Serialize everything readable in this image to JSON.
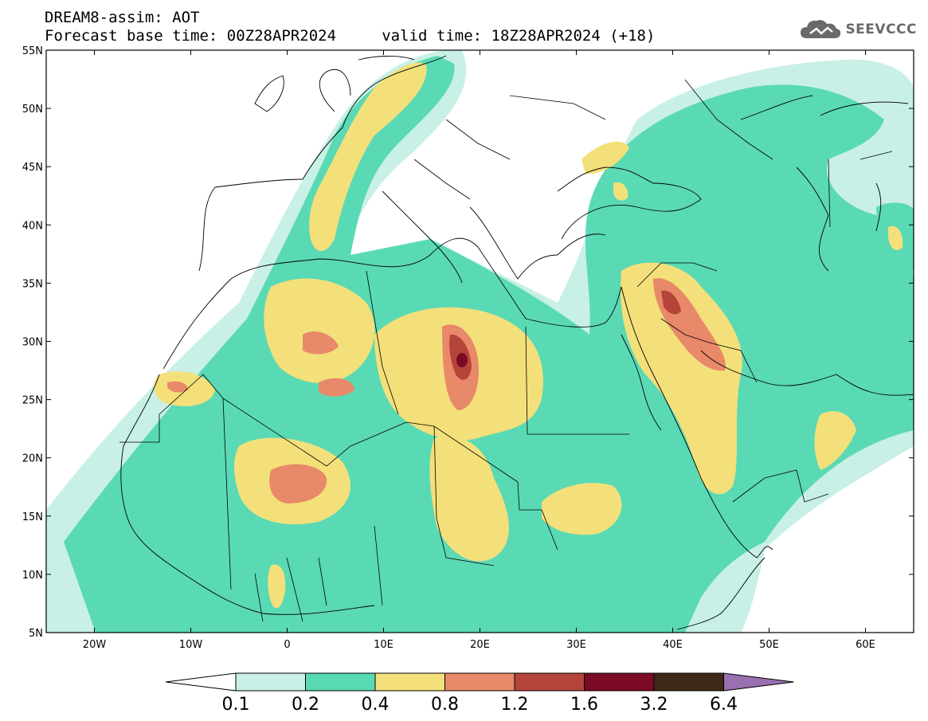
{
  "header": {
    "title_line1": "DREAM8-assim: AOT",
    "title_line2": "Forecast base time: 00Z28APR2024     valid time: 18Z28APR2024 (+18)",
    "logo_text": "SEEVCCC"
  },
  "map": {
    "lon_range": [
      -25,
      65
    ],
    "lat_range": [
      5,
      55
    ],
    "lon_ticks": [
      {
        "value": -20,
        "label": "20W"
      },
      {
        "value": -10,
        "label": "10W"
      },
      {
        "value": 0,
        "label": "0"
      },
      {
        "value": 10,
        "label": "10E"
      },
      {
        "value": 20,
        "label": "20E"
      },
      {
        "value": 30,
        "label": "30E"
      },
      {
        "value": 40,
        "label": "40E"
      },
      {
        "value": 50,
        "label": "50E"
      },
      {
        "value": 60,
        "label": "60E"
      }
    ],
    "lat_ticks": [
      {
        "value": 55,
        "label": "55N"
      },
      {
        "value": 50,
        "label": "50N"
      },
      {
        "value": 45,
        "label": "45N"
      },
      {
        "value": 40,
        "label": "40N"
      },
      {
        "value": 35,
        "label": "35N"
      },
      {
        "value": 30,
        "label": "30N"
      },
      {
        "value": 25,
        "label": "25N"
      },
      {
        "value": 20,
        "label": "20N"
      },
      {
        "value": 15,
        "label": "15N"
      },
      {
        "value": 10,
        "label": "10N"
      },
      {
        "value": 5,
        "label": "5N"
      }
    ],
    "colors": {
      "c01": "#c8f0e6",
      "c02": "#5ad9b5",
      "c04": "#f3e07a",
      "c08": "#e8896a",
      "c12": "#b5443a",
      "c16": "#7a0a26",
      "c32": "#3e2a18",
      "c64": "#9a70b0"
    }
  },
  "colorbar": {
    "labels": [
      "0.1",
      "0.2",
      "0.4",
      "0.8",
      "1.2",
      "1.6",
      "3.2",
      "6.4"
    ],
    "colors": [
      "#c8f0e6",
      "#5ad9b5",
      "#f3e07a",
      "#e8896a",
      "#b5443a",
      "#7a0a26",
      "#3e2a18"
    ],
    "above_color": "#9a70b0"
  }
}
